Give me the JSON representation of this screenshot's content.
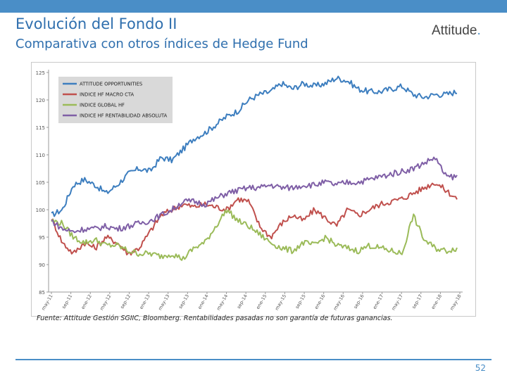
{
  "header": {
    "title": "Evolución del Fondo II",
    "subtitle": "Comparativa con otros índices de Hedge Fund",
    "logo_text": "Attitude",
    "logo_dot": ".",
    "bar_color": "#4a8ec7"
  },
  "footer": {
    "source": "Fuente: Attitude Gestión SGIIC, Bloomberg. Rentabilidades pasadas no son garantía de futuras ganancias.",
    "page_number": "52"
  },
  "chart_data": {
    "type": "line",
    "ylim": [
      85,
      125
    ],
    "y_ticks": [
      "85",
      "90",
      "95",
      "100",
      "105",
      "110",
      "115",
      "120",
      "125"
    ],
    "x_ticks": [
      "may-11",
      "sep-11",
      "ene-12",
      "may-12",
      "sep-12",
      "ene-13",
      "may-13",
      "sep-13",
      "ene-14",
      "may-14",
      "sep-14",
      "ene-15",
      "may-15",
      "sep-15",
      "ene-16",
      "may-16",
      "sep-16",
      "ene-17",
      "may-17",
      "sep-17",
      "ene-18",
      "may-18"
    ],
    "grid": false,
    "legend_position": "top-left",
    "series": [
      {
        "name": "ATTITUDE OPPORTUNITIES",
        "color": "#3d7ebf",
        "values": [
          99,
          100,
          104.5,
          105.5,
          104.5,
          103,
          104.5,
          106.5,
          107.5,
          107,
          109.5,
          109,
          111,
          113,
          114,
          115.5,
          117,
          118,
          120,
          121,
          121.5,
          123,
          122,
          123,
          122.5,
          123,
          124,
          123.5,
          122,
          121.5,
          121.5,
          122,
          122.5,
          121,
          120.5,
          121,
          121,
          121.5
        ]
      },
      {
        "name": "INDICE HF MACRO CTA",
        "color": "#c0504d",
        "values": [
          98.5,
          94,
          92,
          94,
          93,
          95,
          94,
          92,
          93,
          96,
          99,
          100,
          101,
          100.5,
          101,
          100.5,
          100,
          102,
          101.5,
          97,
          95,
          97.5,
          99,
          98,
          100,
          98.5,
          97,
          100,
          99,
          100,
          101,
          101.5,
          102,
          103,
          104,
          105,
          103.5,
          102
        ]
      },
      {
        "name": "INDICE GLOBAL HF",
        "color": "#9bbb59",
        "values": [
          98,
          97.5,
          95,
          94,
          94.5,
          93.5,
          93.5,
          92.5,
          92,
          92,
          91.5,
          92,
          91,
          93,
          94,
          97,
          100,
          98,
          97,
          95.5,
          94,
          93,
          92.5,
          94,
          93.5,
          95,
          93.5,
          93,
          92.5,
          93.5,
          93,
          92.5,
          92,
          99,
          94.5,
          93,
          92.5,
          93
        ]
      },
      {
        "name": "INDICE HF RENTABILIDAD ABSOLUTA",
        "color": "#7f5fa6",
        "values": [
          98,
          96.5,
          96,
          96.5,
          96.5,
          97,
          96.5,
          97,
          97.5,
          98,
          99,
          100,
          101.5,
          101.5,
          101,
          102,
          103,
          103.5,
          104,
          104,
          104.5,
          104,
          104,
          104.5,
          104.5,
          105,
          104.5,
          105,
          105,
          105.5,
          106,
          106.5,
          107,
          107.5,
          108.5,
          109.5,
          106,
          106
        ]
      }
    ]
  }
}
